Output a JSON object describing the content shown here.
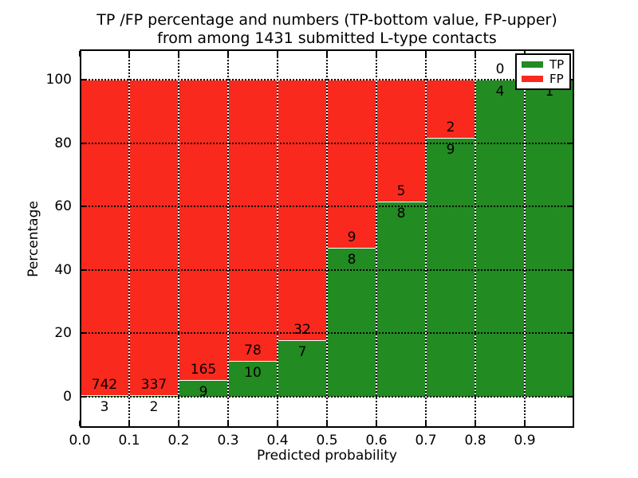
{
  "chart_data": {
    "type": "bar",
    "stacked": true,
    "normalized": "percentage",
    "title_lines": [
      "TP /FP percentage and numbers (TP-bottom value, FP-upper)",
      "from among 1431 submitted L-type contacts"
    ],
    "xlabel": "Predicted probability",
    "ylabel": "Percentage",
    "xlim": [
      0.0,
      1.0
    ],
    "ylim": [
      -9.8,
      109.6
    ],
    "bin_width": 0.1,
    "bin_starts": [
      0.0,
      0.1,
      0.2,
      0.3,
      0.4,
      0.5,
      0.6,
      0.7,
      0.8,
      0.9
    ],
    "x_tick_labels": [
      "0.0",
      "0.1",
      "0.2",
      "0.3",
      "0.4",
      "0.5",
      "0.6",
      "0.7",
      "0.8",
      "0.9"
    ],
    "y_tick_values": [
      0,
      20,
      40,
      60,
      80,
      100
    ],
    "y_tick_labels": [
      "0",
      "20",
      "40",
      "60",
      "80",
      "100"
    ],
    "grid": {
      "visible": true,
      "style": "dotted",
      "color": "#000000"
    },
    "total_contacts": 1431,
    "series": [
      {
        "name": "TP",
        "color": "#228b22",
        "values": [
          3,
          2,
          9,
          10,
          7,
          8,
          8,
          9,
          4,
          1
        ]
      },
      {
        "name": "FP",
        "color": "#f9291e",
        "values": [
          742,
          337,
          165,
          78,
          32,
          9,
          5,
          2,
          0,
          0
        ]
      }
    ],
    "tp_percentages": [
      0.4,
      0.6,
      5.2,
      11.4,
      17.9,
      47.1,
      61.5,
      81.8,
      100.0,
      100.0
    ],
    "bar_labels": {
      "tp": [
        "3",
        "2",
        "9",
        "10",
        "7",
        "8",
        "8",
        "9",
        "4",
        "1"
      ],
      "fp": [
        "742",
        "337",
        "165",
        "78",
        "32",
        "9",
        "5",
        "2",
        "0",
        ""
      ],
      "note": "FP count printed above the TP/FP boundary, TP count below it; FP label of the last bin is hidden behind the legend"
    },
    "legend": {
      "position": "upper right",
      "entries": [
        {
          "label": "TP",
          "color": "#228b22"
        },
        {
          "label": "FP",
          "color": "#f9291e"
        }
      ]
    }
  }
}
